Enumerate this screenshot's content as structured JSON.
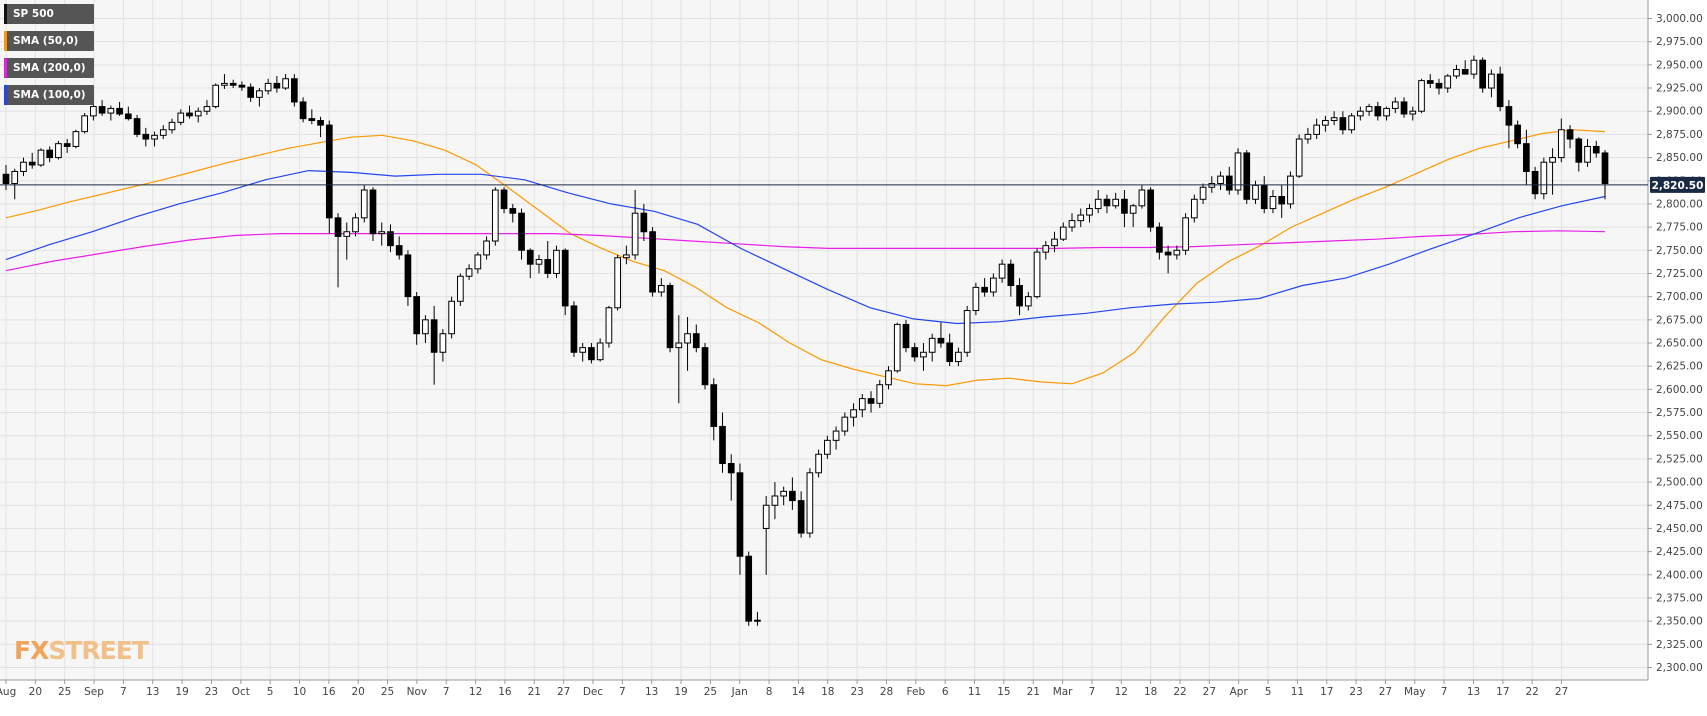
{
  "legend": [
    {
      "label": "SP 500",
      "color": "#111111"
    },
    {
      "label": "SMA (50,0)",
      "color": "#ff9800"
    },
    {
      "label": "SMA (200,0)",
      "color": "#e91ee9"
    },
    {
      "label": "SMA (100,0)",
      "color": "#2146f0"
    }
  ],
  "logo": {
    "text_a": "FX",
    "text_b": "STREET"
  },
  "current_price_label": "2,820.50",
  "chart_data": {
    "type": "candlestick",
    "title": "",
    "ylim": [
      2285,
      3015
    ],
    "y_ticks": [
      "3,000.00",
      "2,975.00",
      "2,950.00",
      "2,925.00",
      "2,900.00",
      "2,875.00",
      "2,850.00",
      "2,825.00",
      "2,800.00",
      "2,775.00",
      "2,750.00",
      "2,725.00",
      "2,700.00",
      "2,675.00",
      "2,650.00",
      "2,625.00",
      "2,600.00",
      "2,575.00",
      "2,550.00",
      "2,525.00",
      "2,500.00",
      "2,475.00",
      "2,450.00",
      "2,425.00",
      "2,400.00",
      "2,375.00",
      "2,350.00",
      "2,325.00",
      "2,300.00"
    ],
    "x_ticks": [
      "Aug",
      "20",
      "25",
      "Sep",
      "7",
      "13",
      "19",
      "23",
      "Oct",
      "5",
      "10",
      "16",
      "20",
      "25",
      "Nov",
      "7",
      "12",
      "16",
      "21",
      "27",
      "Dec",
      "7",
      "13",
      "19",
      "25",
      "Jan",
      "8",
      "14",
      "18",
      "23",
      "28",
      "Feb",
      "6",
      "11",
      "15",
      "21",
      "Mar",
      "7",
      "12",
      "18",
      "22",
      "27",
      "Apr",
      "5",
      "11",
      "17",
      "23",
      "27",
      "May",
      "7",
      "13",
      "17",
      "22",
      "27"
    ],
    "current_price": 2820.5,
    "candles": [
      [
        2832,
        2842,
        2815,
        2822
      ],
      [
        2822,
        2838,
        2805,
        2835
      ],
      [
        2835,
        2850,
        2830,
        2845
      ],
      [
        2845,
        2855,
        2838,
        2842
      ],
      [
        2842,
        2860,
        2840,
        2858
      ],
      [
        2858,
        2862,
        2845,
        2850
      ],
      [
        2850,
        2868,
        2848,
        2865
      ],
      [
        2865,
        2870,
        2855,
        2862
      ],
      [
        2862,
        2880,
        2860,
        2878
      ],
      [
        2878,
        2898,
        2876,
        2895
      ],
      [
        2895,
        2910,
        2890,
        2905
      ],
      [
        2905,
        2912,
        2895,
        2898
      ],
      [
        2898,
        2906,
        2890,
        2903
      ],
      [
        2903,
        2910,
        2895,
        2897
      ],
      [
        2897,
        2905,
        2890,
        2892
      ],
      [
        2892,
        2896,
        2872,
        2875
      ],
      [
        2875,
        2882,
        2862,
        2870
      ],
      [
        2870,
        2878,
        2862,
        2874
      ],
      [
        2874,
        2885,
        2870,
        2880
      ],
      [
        2880,
        2892,
        2876,
        2888
      ],
      [
        2888,
        2902,
        2885,
        2898
      ],
      [
        2898,
        2906,
        2892,
        2895
      ],
      [
        2895,
        2904,
        2888,
        2900
      ],
      [
        2900,
        2912,
        2896,
        2905
      ],
      [
        2905,
        2930,
        2903,
        2928
      ],
      [
        2928,
        2940,
        2924,
        2930
      ],
      [
        2930,
        2934,
        2925,
        2928
      ],
      [
        2928,
        2932,
        2922,
        2926
      ],
      [
        2926,
        2930,
        2910,
        2915
      ],
      [
        2915,
        2925,
        2905,
        2922
      ],
      [
        2922,
        2935,
        2918,
        2930
      ],
      [
        2930,
        2938,
        2920,
        2925
      ],
      [
        2925,
        2940,
        2923,
        2935
      ],
      [
        2935,
        2940,
        2905,
        2910
      ],
      [
        2910,
        2915,
        2888,
        2892
      ],
      [
        2892,
        2902,
        2886,
        2890
      ],
      [
        2890,
        2894,
        2872,
        2885
      ],
      [
        2885,
        2890,
        2768,
        2785
      ],
      [
        2785,
        2790,
        2710,
        2765
      ],
      [
        2765,
        2780,
        2740,
        2770
      ],
      [
        2770,
        2790,
        2765,
        2785
      ],
      [
        2785,
        2820,
        2780,
        2815
      ],
      [
        2815,
        2818,
        2760,
        2768
      ],
      [
        2768,
        2780,
        2755,
        2770
      ],
      [
        2770,
        2778,
        2748,
        2755
      ],
      [
        2755,
        2765,
        2740,
        2745
      ],
      [
        2745,
        2750,
        2690,
        2700
      ],
      [
        2700,
        2705,
        2648,
        2660
      ],
      [
        2660,
        2680,
        2650,
        2675
      ],
      [
        2675,
        2690,
        2605,
        2640
      ],
      [
        2640,
        2665,
        2630,
        2660
      ],
      [
        2660,
        2700,
        2655,
        2695
      ],
      [
        2695,
        2725,
        2690,
        2722
      ],
      [
        2722,
        2735,
        2718,
        2730
      ],
      [
        2730,
        2748,
        2725,
        2745
      ],
      [
        2745,
        2765,
        2740,
        2760
      ],
      [
        2760,
        2818,
        2755,
        2815
      ],
      [
        2815,
        2818,
        2790,
        2795
      ],
      [
        2795,
        2800,
        2780,
        2790
      ],
      [
        2790,
        2795,
        2740,
        2750
      ],
      [
        2750,
        2752,
        2720,
        2735
      ],
      [
        2735,
        2745,
        2725,
        2740
      ],
      [
        2740,
        2760,
        2720,
        2725
      ],
      [
        2725,
        2755,
        2720,
        2750
      ],
      [
        2750,
        2752,
        2680,
        2690
      ],
      [
        2690,
        2695,
        2635,
        2640
      ],
      [
        2640,
        2650,
        2630,
        2645
      ],
      [
        2645,
        2650,
        2628,
        2632
      ],
      [
        2632,
        2655,
        2630,
        2650
      ],
      [
        2650,
        2690,
        2645,
        2688
      ],
      [
        2688,
        2745,
        2685,
        2742
      ],
      [
        2742,
        2755,
        2735,
        2745
      ],
      [
        2745,
        2815,
        2740,
        2790
      ],
      [
        2790,
        2800,
        2760,
        2770
      ],
      [
        2770,
        2775,
        2700,
        2705
      ],
      [
        2705,
        2720,
        2700,
        2712
      ],
      [
        2712,
        2715,
        2640,
        2645
      ],
      [
        2645,
        2680,
        2585,
        2650
      ],
      [
        2650,
        2678,
        2620,
        2660
      ],
      [
        2660,
        2670,
        2640,
        2645
      ],
      [
        2645,
        2650,
        2600,
        2605
      ],
      [
        2605,
        2612,
        2545,
        2560
      ],
      [
        2560,
        2575,
        2510,
        2520
      ],
      [
        2520,
        2530,
        2480,
        2510
      ],
      [
        2510,
        2520,
        2400,
        2420
      ],
      [
        2420,
        2425,
        2345,
        2350
      ],
      [
        2350,
        2360,
        2345,
        2351
      ],
      [
        2450,
        2485,
        2400,
        2475
      ],
      [
        2475,
        2500,
        2460,
        2485
      ],
      [
        2485,
        2495,
        2475,
        2490
      ],
      [
        2490,
        2505,
        2470,
        2480
      ],
      [
        2480,
        2490,
        2440,
        2445
      ],
      [
        2445,
        2515,
        2440,
        2510
      ],
      [
        2510,
        2535,
        2505,
        2530
      ],
      [
        2530,
        2550,
        2525,
        2545
      ],
      [
        2545,
        2560,
        2535,
        2555
      ],
      [
        2555,
        2575,
        2550,
        2570
      ],
      [
        2570,
        2585,
        2560,
        2578
      ],
      [
        2578,
        2595,
        2570,
        2590
      ],
      [
        2590,
        2598,
        2575,
        2585
      ],
      [
        2585,
        2610,
        2580,
        2605
      ],
      [
        2605,
        2625,
        2600,
        2620
      ],
      [
        2620,
        2672,
        2618,
        2670
      ],
      [
        2670,
        2675,
        2640,
        2645
      ],
      [
        2645,
        2650,
        2630,
        2635
      ],
      [
        2635,
        2650,
        2620,
        2640
      ],
      [
        2640,
        2660,
        2630,
        2655
      ],
      [
        2655,
        2672,
        2645,
        2650
      ],
      [
        2650,
        2660,
        2625,
        2630
      ],
      [
        2630,
        2645,
        2625,
        2640
      ],
      [
        2640,
        2690,
        2635,
        2685
      ],
      [
        2685,
        2715,
        2680,
        2710
      ],
      [
        2710,
        2720,
        2700,
        2705
      ],
      [
        2705,
        2725,
        2700,
        2720
      ],
      [
        2720,
        2740,
        2715,
        2735
      ],
      [
        2735,
        2740,
        2700,
        2712
      ],
      [
        2712,
        2720,
        2680,
        2690
      ],
      [
        2690,
        2705,
        2685,
        2700
      ],
      [
        2700,
        2752,
        2698,
        2748
      ],
      [
        2748,
        2760,
        2740,
        2755
      ],
      [
        2755,
        2770,
        2748,
        2762
      ],
      [
        2762,
        2780,
        2760,
        2775
      ],
      [
        2775,
        2790,
        2770,
        2782
      ],
      [
        2782,
        2795,
        2775,
        2788
      ],
      [
        2788,
        2800,
        2780,
        2795
      ],
      [
        2795,
        2815,
        2790,
        2805
      ],
      [
        2805,
        2810,
        2790,
        2798
      ],
      [
        2798,
        2812,
        2795,
        2805
      ],
      [
        2805,
        2815,
        2775,
        2790
      ],
      [
        2790,
        2800,
        2775,
        2798
      ],
      [
        2798,
        2820,
        2795,
        2815
      ],
      [
        2815,
        2818,
        2770,
        2775
      ],
      [
        2775,
        2780,
        2740,
        2748
      ],
      [
        2748,
        2755,
        2725,
        2745
      ],
      [
        2745,
        2755,
        2740,
        2750
      ],
      [
        2750,
        2790,
        2745,
        2785
      ],
      [
        2785,
        2810,
        2780,
        2805
      ],
      [
        2805,
        2822,
        2800,
        2818
      ],
      [
        2818,
        2830,
        2812,
        2822
      ],
      [
        2822,
        2835,
        2815,
        2830
      ],
      [
        2830,
        2840,
        2810,
        2815
      ],
      [
        2815,
        2860,
        2810,
        2855
      ],
      [
        2855,
        2858,
        2800,
        2805
      ],
      [
        2805,
        2825,
        2800,
        2820
      ],
      [
        2820,
        2830,
        2790,
        2795
      ],
      [
        2795,
        2815,
        2790,
        2808
      ],
      [
        2808,
        2820,
        2785,
        2800
      ],
      [
        2800,
        2835,
        2795,
        2830
      ],
      [
        2830,
        2875,
        2828,
        2870
      ],
      [
        2870,
        2882,
        2865,
        2875
      ],
      [
        2875,
        2892,
        2870,
        2885
      ],
      [
        2885,
        2895,
        2878,
        2890
      ],
      [
        2890,
        2900,
        2885,
        2893
      ],
      [
        2893,
        2900,
        2875,
        2880
      ],
      [
        2880,
        2898,
        2876,
        2895
      ],
      [
        2895,
        2905,
        2890,
        2900
      ],
      [
        2900,
        2908,
        2895,
        2905
      ],
      [
        2905,
        2910,
        2890,
        2895
      ],
      [
        2895,
        2905,
        2890,
        2903
      ],
      [
        2903,
        2915,
        2898,
        2910
      ],
      [
        2910,
        2915,
        2893,
        2897
      ],
      [
        2897,
        2905,
        2890,
        2900
      ],
      [
        2900,
        2935,
        2898,
        2933
      ],
      [
        2933,
        2940,
        2925,
        2930
      ],
      [
        2930,
        2935,
        2918,
        2925
      ],
      [
        2925,
        2940,
        2920,
        2938
      ],
      [
        2938,
        2950,
        2935,
        2945
      ],
      [
        2945,
        2955,
        2940,
        2940
      ],
      [
        2940,
        2960,
        2935,
        2955
      ],
      [
        2955,
        2958,
        2920,
        2925
      ],
      [
        2925,
        2945,
        2915,
        2940
      ],
      [
        2940,
        2948,
        2900,
        2905
      ],
      [
        2905,
        2912,
        2860,
        2885
      ],
      [
        2885,
        2890,
        2860,
        2865
      ],
      [
        2865,
        2880,
        2820,
        2835
      ],
      [
        2835,
        2840,
        2805,
        2811
      ],
      [
        2811,
        2850,
        2805,
        2845
      ],
      [
        2845,
        2860,
        2810,
        2850
      ],
      [
        2850,
        2892,
        2845,
        2880
      ],
      [
        2880,
        2885,
        2860,
        2870
      ],
      [
        2870,
        2872,
        2835,
        2845
      ],
      [
        2845,
        2870,
        2840,
        2862
      ],
      [
        2862,
        2868,
        2850,
        2855
      ],
      [
        2855,
        2858,
        2805,
        2822
      ]
    ],
    "series": [
      {
        "name": "SMA (50,0)",
        "color": "#ff9800",
        "values": [
          2785,
          2793,
          2802,
          2810,
          2818,
          2826,
          2835,
          2844,
          2852,
          2860,
          2866,
          2872,
          2874,
          2868,
          2858,
          2842,
          2818,
          2793,
          2768,
          2752,
          2738,
          2728,
          2710,
          2688,
          2672,
          2650,
          2632,
          2622,
          2614,
          2606,
          2604,
          2610,
          2612,
          2608,
          2606,
          2618,
          2640,
          2680,
          2715,
          2738,
          2755,
          2775,
          2790,
          2805,
          2818,
          2833,
          2848,
          2860,
          2868,
          2876,
          2880,
          2878
        ]
      },
      {
        "name": "SMA (200,0)",
        "color": "#e91ee9",
        "values": [
          2728,
          2738,
          2746,
          2754,
          2761,
          2766,
          2768,
          2768,
          2768,
          2768,
          2768,
          2768,
          2768,
          2766,
          2763,
          2760,
          2757,
          2754,
          2752,
          2752,
          2752,
          2752,
          2752,
          2752,
          2753,
          2753,
          2754,
          2756,
          2758,
          2760,
          2762,
          2765,
          2767,
          2770,
          2771,
          2770
        ]
      },
      {
        "name": "SMA (100,0)",
        "color": "#2146f0",
        "values": [
          2740,
          2756,
          2770,
          2786,
          2800,
          2812,
          2826,
          2836,
          2834,
          2830,
          2832,
          2832,
          2826,
          2812,
          2800,
          2792,
          2778,
          2752,
          2730,
          2708,
          2688,
          2676,
          2671,
          2673,
          2678,
          2682,
          2688,
          2692,
          2694,
          2698,
          2712,
          2720,
          2735,
          2752,
          2768,
          2785,
          2798,
          2808
        ]
      }
    ]
  }
}
